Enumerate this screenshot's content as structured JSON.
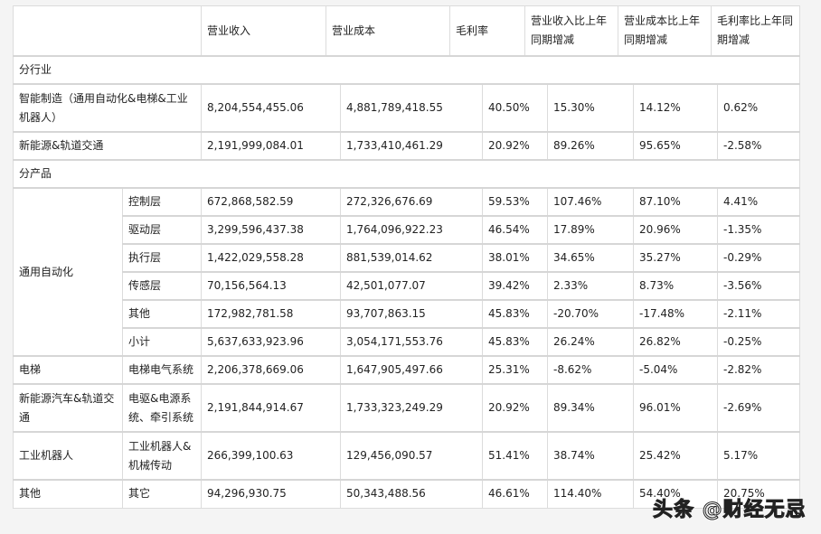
{
  "header": [
    "",
    "营业收入",
    "营业成本",
    "毛利率",
    "营业收入比上年同期增减",
    "营业成本比上年同期增减",
    "毛利率比上年同期增减"
  ],
  "sections": [
    {
      "title": "分行业",
      "rows": [
        {
          "group": "智能制造（通用自动化&电梯&工业机器人）",
          "values": [
            "8,204,554,455.06",
            "4,881,789,418.55",
            "40.50%",
            "15.30%",
            "14.12%",
            "0.62%"
          ]
        },
        {
          "group": "新能源&轨道交通",
          "values": [
            "2,191,999,084.01",
            "1,733,410,461.29",
            "20.92%",
            "89.26%",
            "95.65%",
            "-2.58%"
          ]
        }
      ]
    },
    {
      "title": "分产品",
      "groups": [
        {
          "group": "通用自动化",
          "rows": [
            {
              "product": "控制层",
              "values": [
                "672,868,582.59",
                "272,326,676.69",
                "59.53%",
                "107.46%",
                "87.10%",
                "4.41%"
              ]
            },
            {
              "product": "驱动层",
              "values": [
                "3,299,596,437.38",
                "1,764,096,922.23",
                "46.54%",
                "17.89%",
                "20.96%",
                "-1.35%"
              ]
            },
            {
              "product": "执行层",
              "values": [
                "1,422,029,558.28",
                "881,539,014.62",
                "38.01%",
                "34.65%",
                "35.27%",
                "-0.29%"
              ]
            },
            {
              "product": "传感层",
              "values": [
                "70,156,564.13",
                "42,501,077.07",
                "39.42%",
                "2.33%",
                "8.73%",
                "-3.56%"
              ]
            },
            {
              "product": "其他",
              "values": [
                "172,982,781.58",
                "93,707,863.15",
                "45.83%",
                "-20.70%",
                "-17.48%",
                "-2.11%"
              ]
            },
            {
              "product": "小计",
              "values": [
                "5,637,633,923.96",
                "3,054,171,553.76",
                "45.83%",
                "26.24%",
                "26.82%",
                "-0.25%"
              ]
            }
          ]
        },
        {
          "group": "电梯",
          "rows": [
            {
              "product": "电梯电气系统",
              "values": [
                "2,206,378,669.06",
                "1,647,905,497.66",
                "25.31%",
                "-8.62%",
                "-5.04%",
                "-2.82%"
              ]
            }
          ]
        },
        {
          "group": "新能源汽车&轨道交通",
          "rows": [
            {
              "product": "电驱&电源系统、牵引系统",
              "values": [
                "2,191,844,914.67",
                "1,733,323,249.29",
                "20.92%",
                "89.34%",
                "96.01%",
                "-2.69%"
              ]
            }
          ]
        },
        {
          "group": "工业机器人",
          "rows": [
            {
              "product": "工业机器人&机械传动",
              "values": [
                "266,399,100.63",
                "129,456,090.57",
                "51.41%",
                "38.74%",
                "25.42%",
                "5.17%"
              ]
            }
          ]
        },
        {
          "group": "其他",
          "rows": [
            {
              "product": "其它",
              "values": [
                "94,296,930.75",
                "50,343,488.56",
                "46.61%",
                "114.40%",
                "54.40%",
                "20.75%"
              ]
            }
          ]
        }
      ]
    }
  ],
  "watermark": "头条 @财经无忌"
}
